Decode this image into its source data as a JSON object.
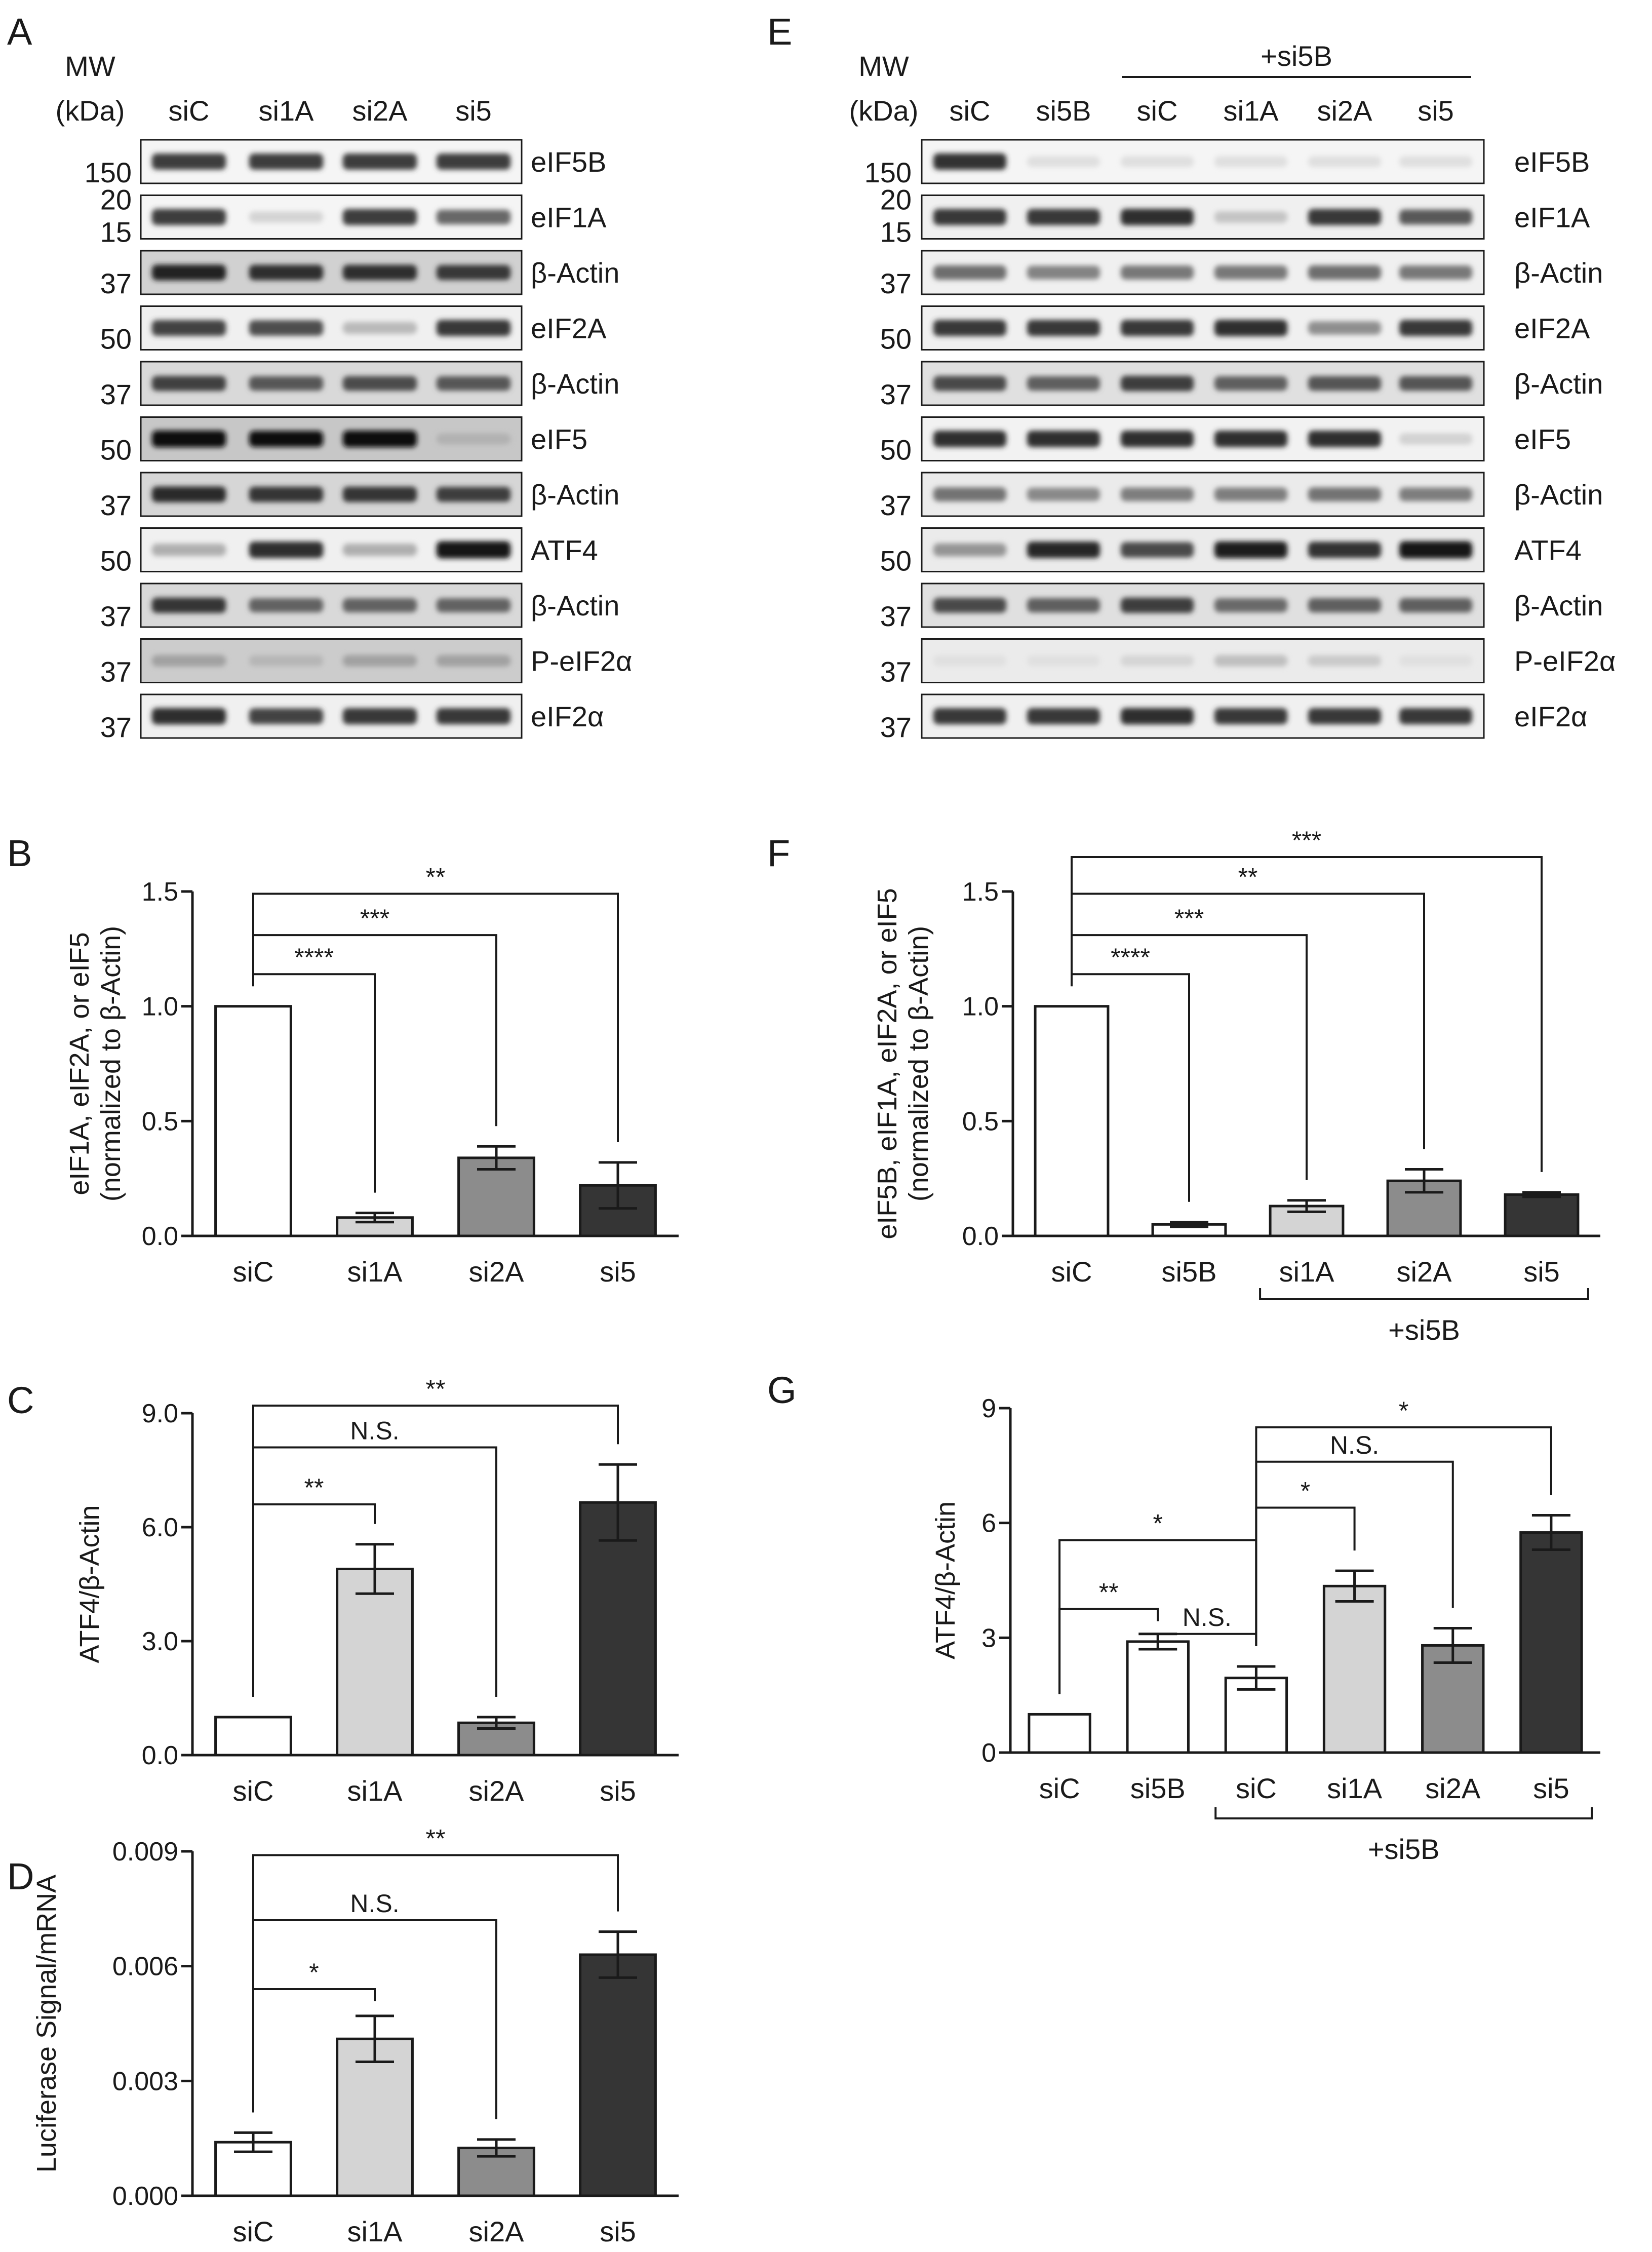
{
  "figure": {
    "panel_labels": {
      "A": "A",
      "B": "B",
      "C": "C",
      "D": "D",
      "E": "E",
      "F": "F",
      "G": "G"
    }
  },
  "blots": [
    {
      "panel": "A",
      "mw_header": [
        "MW",
        "(kDa)"
      ],
      "lanes": [
        "siC",
        "si1A",
        "si2A",
        "si5"
      ],
      "rows": [
        {
          "label": "eIF5B",
          "mw": [
            "150"
          ],
          "bg": 0.96,
          "lanes": [
            0.85,
            0.85,
            0.85,
            0.85
          ]
        },
        {
          "label": "eIF1A",
          "mw": [
            "20",
            "15"
          ],
          "bg": 0.96,
          "lanes": [
            0.85,
            0.15,
            0.85,
            0.65
          ]
        },
        {
          "label": "β-Actin",
          "mw": [
            "37"
          ],
          "bg": 0.82,
          "lanes": [
            0.8,
            0.75,
            0.75,
            0.7
          ]
        },
        {
          "label": "eIF2A",
          "mw": [
            "50"
          ],
          "bg": 0.94,
          "lanes": [
            0.8,
            0.75,
            0.25,
            0.85
          ]
        },
        {
          "label": "β-Actin",
          "mw": [
            "37"
          ],
          "bg": 0.85,
          "lanes": [
            0.7,
            0.6,
            0.65,
            0.6
          ]
        },
        {
          "label": "eIF5",
          "mw": [
            "50"
          ],
          "bg": 0.78,
          "lanes": [
            0.95,
            0.85,
            0.95,
            0.1
          ]
        },
        {
          "label": "β-Actin",
          "mw": [
            "37"
          ],
          "bg": 0.84,
          "lanes": [
            0.8,
            0.75,
            0.75,
            0.7
          ]
        },
        {
          "label": "ATF4",
          "mw": [
            "50"
          ],
          "bg": 0.94,
          "lanes": [
            0.3,
            0.9,
            0.3,
            1.0
          ]
        },
        {
          "label": "β-Actin",
          "mw": [
            "37"
          ],
          "bg": 0.85,
          "lanes": [
            0.75,
            0.55,
            0.55,
            0.55
          ]
        },
        {
          "label": "P-eIF2α",
          "mw": [
            "37"
          ],
          "bg": 0.8,
          "lanes": [
            0.2,
            0.1,
            0.2,
            0.2
          ]
        },
        {
          "label": "eIF2α",
          "mw": [
            "37"
          ],
          "bg": 0.94,
          "lanes": [
            0.9,
            0.8,
            0.85,
            0.85
          ]
        }
      ]
    },
    {
      "panel": "E",
      "mw_header": [
        "MW",
        "(kDa)"
      ],
      "bracket_label": "+si5B",
      "lanes": [
        "siC",
        "si5B",
        "siC",
        "si1A",
        "si2A",
        "si5"
      ],
      "rows": [
        {
          "label": "eIF5B",
          "mw": [
            "150"
          ],
          "bg": 0.96,
          "lanes": [
            0.9,
            0.1,
            0.1,
            0.1,
            0.1,
            0.1
          ]
        },
        {
          "label": "eIF1A",
          "mw": [
            "20",
            "15"
          ],
          "bg": 0.94,
          "lanes": [
            0.85,
            0.85,
            0.9,
            0.2,
            0.85,
            0.7
          ]
        },
        {
          "label": "β-Actin",
          "mw": [
            "37"
          ],
          "bg": 0.94,
          "lanes": [
            0.6,
            0.5,
            0.55,
            0.55,
            0.6,
            0.55
          ]
        },
        {
          "label": "eIF2A",
          "mw": [
            "50"
          ],
          "bg": 0.94,
          "lanes": [
            0.85,
            0.85,
            0.85,
            0.9,
            0.45,
            0.85
          ]
        },
        {
          "label": "β-Actin",
          "mw": [
            "37"
          ],
          "bg": 0.88,
          "lanes": [
            0.7,
            0.6,
            0.75,
            0.6,
            0.65,
            0.65
          ]
        },
        {
          "label": "eIF5",
          "mw": [
            "50"
          ],
          "bg": 0.95,
          "lanes": [
            0.9,
            0.9,
            0.9,
            0.9,
            0.9,
            0.15
          ]
        },
        {
          "label": "β-Actin",
          "mw": [
            "37"
          ],
          "bg": 0.92,
          "lanes": [
            0.55,
            0.45,
            0.5,
            0.5,
            0.55,
            0.5
          ]
        },
        {
          "label": "ATF4",
          "mw": [
            "50"
          ],
          "bg": 0.92,
          "lanes": [
            0.4,
            0.9,
            0.75,
            0.95,
            0.85,
            1.0
          ]
        },
        {
          "label": "β-Actin",
          "mw": [
            "37"
          ],
          "bg": 0.88,
          "lanes": [
            0.7,
            0.6,
            0.75,
            0.55,
            0.6,
            0.6
          ]
        },
        {
          "label": "P-eIF2α",
          "mw": [
            "37"
          ],
          "bg": 0.92,
          "lanes": [
            0.05,
            0.05,
            0.1,
            0.2,
            0.15,
            0.05
          ]
        },
        {
          "label": "eIF2α",
          "mw": [
            "37"
          ],
          "bg": 0.94,
          "lanes": [
            0.85,
            0.85,
            0.9,
            0.85,
            0.85,
            0.85
          ]
        }
      ]
    }
  ],
  "chart_data": [
    {
      "panel": "B",
      "type": "bar",
      "ylabel": [
        "eIF1A, eIF2A, or eIF5",
        "(normalized to β-Actin)"
      ],
      "ylim": [
        0,
        1.5
      ],
      "yticks": [
        "0.0",
        "0.5",
        "1.0",
        "1.5"
      ],
      "categories": [
        "siC",
        "si1A",
        "si2A",
        "si5"
      ],
      "values": [
        1.0,
        0.08,
        0.34,
        0.22
      ],
      "errors": [
        0,
        0.02,
        0.05,
        0.1
      ],
      "colors": [
        "#ffffff",
        "#d4d4d4",
        "#8c8c8c",
        "#353535"
      ],
      "comparisons": [
        {
          "from": 0,
          "to": 1,
          "label": "****",
          "y": 1.14
        },
        {
          "from": 0,
          "to": 2,
          "label": "***",
          "y": 1.31
        },
        {
          "from": 0,
          "to": 3,
          "label": "**",
          "y": 1.49
        }
      ]
    },
    {
      "panel": "C",
      "type": "bar",
      "ylabel": [
        "ATF4/β-Actin"
      ],
      "ylim": [
        0,
        9
      ],
      "yticks": [
        "0.0",
        "3.0",
        "6.0",
        "9.0"
      ],
      "categories": [
        "siC",
        "si1A",
        "si2A",
        "si5"
      ],
      "values": [
        1.0,
        4.9,
        0.85,
        6.65
      ],
      "errors": [
        0,
        0.65,
        0.15,
        1.0
      ],
      "colors": [
        "#ffffff",
        "#d4d4d4",
        "#8c8c8c",
        "#353535"
      ],
      "comparisons": [
        {
          "from": 0,
          "to": 1,
          "label": "**",
          "y": 6.6
        },
        {
          "from": 0,
          "to": 2,
          "label": "N.S.",
          "y": 8.1
        },
        {
          "from": 0,
          "to": 3,
          "label": "**",
          "y": 9.2
        }
      ]
    },
    {
      "panel": "D",
      "type": "bar",
      "ylabel": [
        "Luciferase Signal/mRNA"
      ],
      "ylim": [
        0,
        0.009
      ],
      "yticks": [
        "0.000",
        "0.003",
        "0.006",
        "0.009"
      ],
      "categories": [
        "siC",
        "si1A",
        "si2A",
        "si5"
      ],
      "values": [
        0.0014,
        0.0041,
        0.00125,
        0.0063
      ],
      "errors": [
        0.00025,
        0.0006,
        0.00022,
        0.0006
      ],
      "colors": [
        "#ffffff",
        "#d4d4d4",
        "#8c8c8c",
        "#353535"
      ],
      "comparisons": [
        {
          "from": 0,
          "to": 1,
          "label": "*",
          "y": 0.0054
        },
        {
          "from": 0,
          "to": 2,
          "label": "N.S.",
          "y": 0.0072
        },
        {
          "from": 0,
          "to": 3,
          "label": "**",
          "y": 0.0089
        }
      ]
    },
    {
      "panel": "F",
      "type": "bar",
      "ylabel": [
        "eIF5B, eIF1A, eIF2A, or eIF5",
        "(normalized to β-Actin)"
      ],
      "ylim": [
        0,
        1.5
      ],
      "yticks": [
        "0.0",
        "0.5",
        "1.0",
        "1.5"
      ],
      "categories": [
        "siC",
        "si5B",
        "si1A",
        "si2A",
        "si5"
      ],
      "values": [
        1.0,
        0.05,
        0.13,
        0.24,
        0.18
      ],
      "errors": [
        0,
        0.01,
        0.025,
        0.05,
        0.01
      ],
      "colors": [
        "#ffffff",
        "#ffffff",
        "#d4d4d4",
        "#8c8c8c",
        "#353535"
      ],
      "bracket": {
        "from": 2,
        "to": 4,
        "label": "+si5B"
      },
      "comparisons": [
        {
          "from": 0,
          "to": 1,
          "label": "****",
          "y": 1.14
        },
        {
          "from": 0,
          "to": 2,
          "label": "***",
          "y": 1.31
        },
        {
          "from": 0,
          "to": 3,
          "label": "**",
          "y": 1.49
        },
        {
          "from": 0,
          "to": 4,
          "label": "***",
          "y": 1.65
        }
      ]
    },
    {
      "panel": "G",
      "type": "bar",
      "ylabel": [
        "ATF4/β-Actin"
      ],
      "ylim": [
        0,
        9
      ],
      "yticks": [
        "0",
        "3",
        "6",
        "9"
      ],
      "categories": [
        "siC",
        "si5B",
        "siC",
        "si1A",
        "si2A",
        "si5"
      ],
      "values": [
        1.0,
        2.9,
        1.95,
        4.35,
        2.8,
        5.75
      ],
      "errors": [
        0,
        0.2,
        0.3,
        0.4,
        0.45,
        0.45
      ],
      "colors": [
        "#ffffff",
        "#ffffff",
        "#ffffff",
        "#d4d4d4",
        "#8c8c8c",
        "#353535"
      ],
      "bracket": {
        "from": 2,
        "to": 5,
        "label": "+si5B"
      },
      "comparisons": [
        {
          "from": 0,
          "to": 1,
          "label": "**",
          "y": 3.75
        },
        {
          "from": 1,
          "to": 2,
          "label": "N.S.",
          "y": 3.1
        },
        {
          "from": 0,
          "to": 2,
          "label": "*",
          "y": 5.55
        },
        {
          "from": 2,
          "to": 3,
          "label": "*",
          "y": 6.4
        },
        {
          "from": 2,
          "to": 4,
          "label": "N.S.",
          "y": 7.6
        },
        {
          "from": 2,
          "to": 5,
          "label": "*",
          "y": 8.5
        }
      ]
    }
  ]
}
